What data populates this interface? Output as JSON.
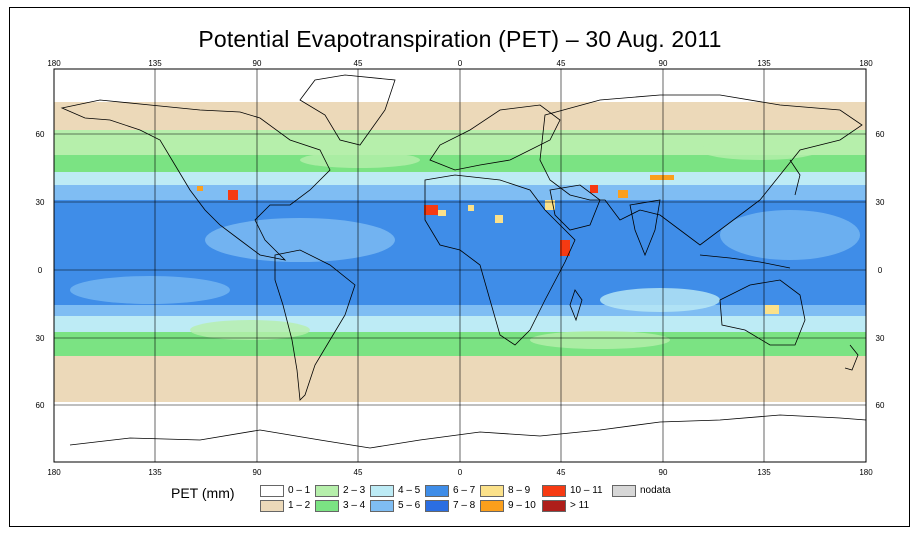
{
  "title": "Potential Evapotranspiration (PET) – 30 Aug. 2011",
  "lon_ticks": [
    "180",
    "135",
    "90",
    "45",
    "0",
    "45",
    "90",
    "135",
    "180"
  ],
  "lat_ticks": [
    "60",
    "30",
    "0",
    "30",
    "60"
  ],
  "legend": {
    "title": "PET (mm)",
    "items": [
      {
        "label": "0 – 1",
        "color": "#ffffff"
      },
      {
        "label": "1 – 2",
        "color": "#ecd9b9"
      },
      {
        "label": "2 – 3",
        "color": "#b6efab"
      },
      {
        "label": "3 – 4",
        "color": "#7be383"
      },
      {
        "label": "4 – 5",
        "color": "#bdebf5"
      },
      {
        "label": "5 – 6",
        "color": "#7fbdf3"
      },
      {
        "label": "6 – 7",
        "color": "#3f8de8"
      },
      {
        "label": "7 – 8",
        "color": "#2b6ee2"
      },
      {
        "label": "8 – 9",
        "color": "#fbe18a"
      },
      {
        "label": "9 – 10",
        "color": "#fb9f1c"
      },
      {
        "label": "10 – 11",
        "color": "#f63a12"
      },
      {
        "label": "> 11",
        "color": "#ae1e1a"
      },
      {
        "label": "nodata",
        "color": "#d7d7d7"
      }
    ]
  }
}
